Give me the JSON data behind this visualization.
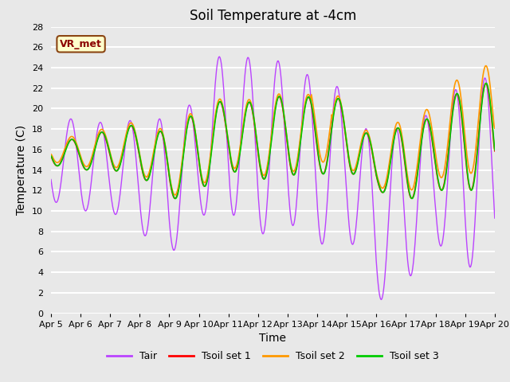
{
  "title": "Soil Temperature at -4cm",
  "xlabel": "Time",
  "ylabel": "Temperature (C)",
  "annotation": "VR_met",
  "ylim": [
    0,
    28
  ],
  "xtick_labels": [
    "Apr 5",
    "Apr 6",
    "Apr 7",
    "Apr 8",
    "Apr 9",
    "Apr 10",
    "Apr 11",
    "Apr 12",
    "Apr 13",
    "Apr 14",
    "Apr 15",
    "Apr 16",
    "Apr 17",
    "Apr 18",
    "Apr 19",
    "Apr 20"
  ],
  "legend_labels": [
    "Tair",
    "Tsoil set 1",
    "Tsoil set 2",
    "Tsoil set 3"
  ],
  "line_colors": [
    "#bb44ff",
    "#ff0000",
    "#ff9900",
    "#00cc00"
  ],
  "background_color": "#e8e8e8",
  "grid_color": "#ffffff",
  "title_fontsize": 12,
  "axis_fontsize": 10,
  "tick_fontsize": 8,
  "legend_fontsize": 9
}
